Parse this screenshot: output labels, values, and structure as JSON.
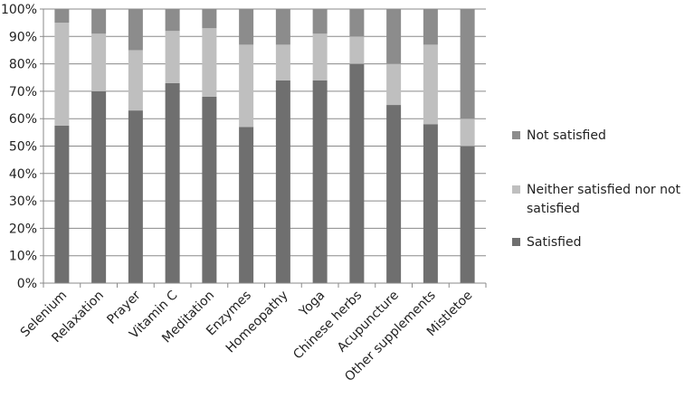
{
  "chart_data": {
    "type": "bar",
    "stacked": true,
    "title": "",
    "xlabel": "",
    "ylabel": "",
    "ylim": [
      0,
      100
    ],
    "y_ticks": [
      "0%",
      "10%",
      "20%",
      "30%",
      "40%",
      "50%",
      "60%",
      "70%",
      "80%",
      "90%",
      "100%"
    ],
    "grid": true,
    "legend_position": "right",
    "categories": [
      "Selenium",
      "Relaxation",
      "Prayer",
      "Vitamin C",
      "Meditation",
      "Enzymes",
      "Homeopathy",
      "Yoga",
      "Chinese herbs",
      "Acupuncture",
      "Other supplements",
      "Mistletoe"
    ],
    "series": [
      {
        "name": "Satisfied",
        "color": "#6f6f6f",
        "values": [
          57.5,
          70,
          63,
          73,
          68,
          57,
          74,
          74,
          80,
          65,
          58,
          50
        ]
      },
      {
        "name": "Neither satisfied nor not satisfied",
        "color": "#bfbfbf",
        "values": [
          37.5,
          21,
          22,
          19,
          25,
          30,
          13,
          17,
          10,
          15,
          29,
          10
        ]
      },
      {
        "name": "Not satisfied",
        "color": "#8c8c8c",
        "values": [
          5,
          9,
          15,
          8,
          7,
          13,
          13,
          9,
          10,
          20,
          13,
          40
        ]
      }
    ],
    "legend_order": [
      "Not satisfied",
      "Neither satisfied nor not satisfied",
      "Satisfied"
    ]
  }
}
